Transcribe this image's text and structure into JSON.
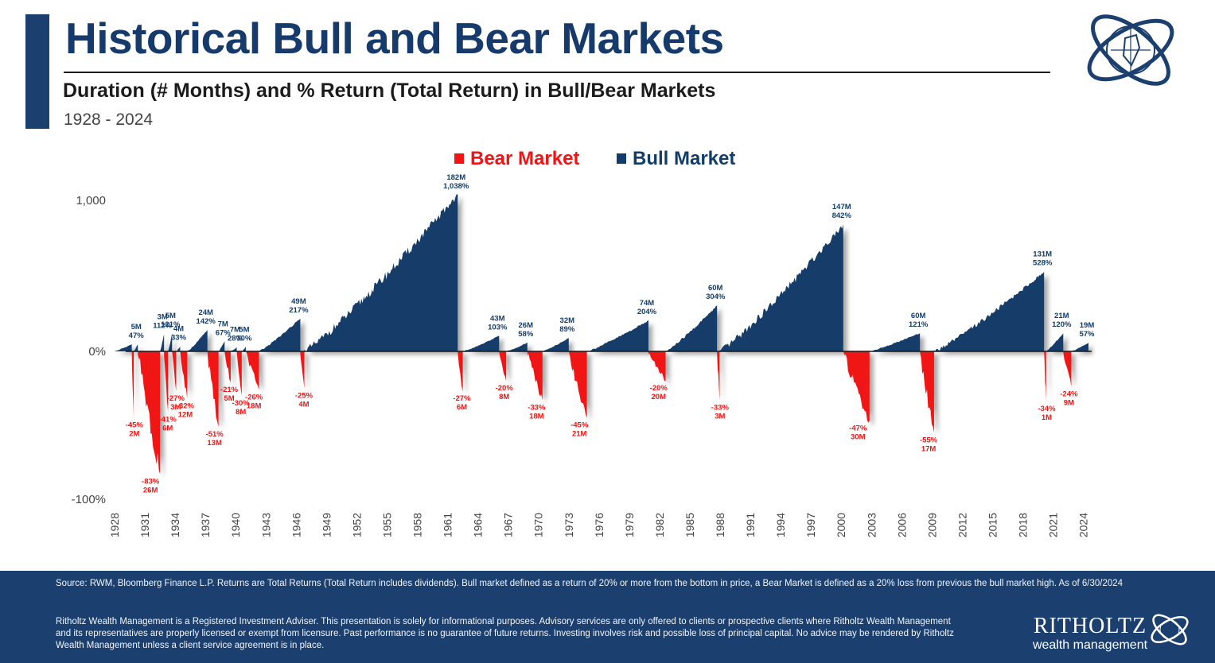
{
  "header": {
    "title": "Historical Bull and Bear Markets",
    "subtitle": "Duration (# Months) and % Return (Total Return) in Bull/Bear Markets",
    "date_range": "1928 - 2024"
  },
  "logo": {
    "icon": "globe-compass-logo"
  },
  "colors": {
    "bull": "#123d6a",
    "bear": "#f01414",
    "navy": "#1b3f6e"
  },
  "chart_data": {
    "type": "area",
    "legend": [
      {
        "name": "Bear Market",
        "color": "#f01414"
      },
      {
        "name": "Bull Market",
        "color": "#123d6a"
      }
    ],
    "legend_position": "top-center",
    "y_ticks": [
      1000,
      0,
      -100
    ],
    "y_tick_labels": [
      "1,000",
      "0%",
      "-100%"
    ],
    "x_ticks": [
      "1928",
      "1931",
      "1934",
      "1937",
      "1940",
      "1943",
      "1946",
      "1949",
      "1952",
      "1955",
      "1958",
      "1961",
      "1964",
      "1967",
      "1970",
      "1973",
      "1976",
      "1979",
      "1982",
      "1985",
      "1988",
      "1991",
      "1994",
      "1997",
      "2000",
      "2003",
      "2006",
      "2009",
      "2012",
      "2015",
      "2018",
      "2021",
      "2024"
    ],
    "scale": "y axis scaled: positive returns up to ~1,000%, negative down to -100%",
    "bull_markets": [
      {
        "start": 1928.0,
        "end": 1929.7,
        "months": "",
        "return_pct": 47,
        "label": ""
      },
      {
        "start": 1929.9,
        "end": 1930.3,
        "months": "5M",
        "return_pct": 47,
        "label_months": "5M",
        "label_return": "47%"
      },
      {
        "start": 1932.5,
        "end": 1932.9,
        "months": "3M",
        "return_pct": 112,
        "label_months": "3M",
        "label_return": "112%"
      },
      {
        "start": 1933.3,
        "end": 1933.7,
        "months": "5M",
        "return_pct": 121,
        "label_months": "5M",
        "label_return": "121%"
      },
      {
        "start": 1934.1,
        "end": 1934.5,
        "months": "4M",
        "return_pct": 33,
        "label_months": "4M",
        "label_return": "33%"
      },
      {
        "start": 1935.2,
        "end": 1937.2,
        "months": "24M",
        "return_pct": 142,
        "label_months": "24M",
        "label_return": "142%"
      },
      {
        "start": 1938.3,
        "end": 1938.9,
        "months": "7M",
        "return_pct": 67,
        "label_months": "7M",
        "label_return": "67%"
      },
      {
        "start": 1939.5,
        "end": 1940.1,
        "months": "7M",
        "return_pct": 28,
        "label_months": "7M",
        "label_return": "28%"
      },
      {
        "start": 1940.6,
        "end": 1941.0,
        "months": "5M",
        "return_pct": 30,
        "label_months": "5M",
        "label_return": "30%"
      },
      {
        "start": 1942.3,
        "end": 1946.4,
        "months": "49M",
        "return_pct": 217,
        "label_months": "49M",
        "label_return": "217%"
      },
      {
        "start": 1946.8,
        "end": 1962.0,
        "months": "182M",
        "return_pct": 1038,
        "label_months": "182M",
        "label_return": "1,038%"
      },
      {
        "start": 1962.5,
        "end": 1966.1,
        "months": "43M",
        "return_pct": 103,
        "label_months": "43M",
        "label_return": "103%"
      },
      {
        "start": 1966.8,
        "end": 1968.9,
        "months": "26M",
        "return_pct": 58,
        "label_months": "26M",
        "label_return": "58%"
      },
      {
        "start": 1970.4,
        "end": 1973.0,
        "months": "32M",
        "return_pct": 89,
        "label_months": "32M",
        "label_return": "89%"
      },
      {
        "start": 1974.8,
        "end": 1980.9,
        "months": "74M",
        "return_pct": 204,
        "label_months": "74M",
        "label_return": "204%"
      },
      {
        "start": 1982.6,
        "end": 1987.7,
        "months": "60M",
        "return_pct": 304,
        "label_months": "60M",
        "label_return": "304%"
      },
      {
        "start": 1987.95,
        "end": 2000.2,
        "months": "147M",
        "return_pct": 842,
        "label_months": "147M",
        "label_return": "842%"
      },
      {
        "start": 2002.8,
        "end": 2007.8,
        "months": "60M",
        "return_pct": 121,
        "label_months": "60M",
        "label_return": "121%"
      },
      {
        "start": 2009.2,
        "end": 2020.1,
        "months": "131M",
        "return_pct": 528,
        "label_months": "131M",
        "label_return": "528%"
      },
      {
        "start": 2020.25,
        "end": 2022.0,
        "months": "21M",
        "return_pct": 120,
        "label_months": "21M",
        "label_return": "120%"
      },
      {
        "start": 2022.8,
        "end": 2024.5,
        "months": "19M",
        "return_pct": 57,
        "label_months": "19M",
        "label_return": "57%"
      }
    ],
    "bear_markets": [
      {
        "start": 1929.7,
        "end": 1929.9,
        "return_pct": -45,
        "label_return": "-45%",
        "label_months": "2M"
      },
      {
        "start": 1930.3,
        "end": 1932.5,
        "return_pct": -83,
        "label_return": "-83%",
        "label_months": "26M"
      },
      {
        "start": 1932.9,
        "end": 1933.3,
        "return_pct": -41,
        "label_return": "-41%",
        "label_months": "6M"
      },
      {
        "start": 1933.7,
        "end": 1934.1,
        "return_pct": -27,
        "label_return": "-27%",
        "label_months": "3M"
      },
      {
        "start": 1934.5,
        "end": 1935.2,
        "return_pct": -32,
        "label_return": "-32%",
        "label_months": "12M"
      },
      {
        "start": 1937.2,
        "end": 1938.3,
        "return_pct": -51,
        "label_return": "-51%",
        "label_months": "13M"
      },
      {
        "start": 1938.9,
        "end": 1939.5,
        "return_pct": -21,
        "label_return": "-21%",
        "label_months": "5M"
      },
      {
        "start": 1940.1,
        "end": 1940.6,
        "return_pct": -30,
        "label_return": "-30%",
        "label_months": "8M"
      },
      {
        "start": 1941.0,
        "end": 1942.3,
        "return_pct": -26,
        "label_return": "-26%",
        "label_months": "18M"
      },
      {
        "start": 1946.4,
        "end": 1946.8,
        "return_pct": -25,
        "label_return": "-25%",
        "label_months": "4M"
      },
      {
        "start": 1962.0,
        "end": 1962.5,
        "return_pct": -27,
        "label_return": "-27%",
        "label_months": "6M"
      },
      {
        "start": 1966.1,
        "end": 1966.8,
        "return_pct": -20,
        "label_return": "-20%",
        "label_months": "8M"
      },
      {
        "start": 1968.9,
        "end": 1970.4,
        "return_pct": -33,
        "label_return": "-33%",
        "label_months": "18M"
      },
      {
        "start": 1973.0,
        "end": 1974.8,
        "return_pct": -45,
        "label_return": "-45%",
        "label_months": "21M"
      },
      {
        "start": 1980.9,
        "end": 1982.6,
        "return_pct": -20,
        "label_return": "-20%",
        "label_months": "20M"
      },
      {
        "start": 1987.7,
        "end": 1987.95,
        "return_pct": -33,
        "label_return": "-33%",
        "label_months": "3M"
      },
      {
        "start": 2000.2,
        "end": 2002.8,
        "return_pct": -47,
        "label_return": "-47%",
        "label_months": "30M"
      },
      {
        "start": 2007.8,
        "end": 2009.2,
        "return_pct": -55,
        "label_return": "-55%",
        "label_months": "17M"
      },
      {
        "start": 2020.1,
        "end": 2020.25,
        "return_pct": -34,
        "label_return": "-34%",
        "label_months": "1M"
      },
      {
        "start": 2022.0,
        "end": 2022.8,
        "return_pct": -24,
        "label_return": "-24%",
        "label_months": "9M"
      }
    ]
  },
  "footer": {
    "source_note": "Source: RWM, Bloomberg Finance L.P. Returns are Total Returns (Total Return includes dividends). Bull market defined as a return of 20% or more from the bottom in price, a Bear Market is defined as a 20% loss from previous the bull market high. As of 6/30/2024",
    "disclaimer": "Ritholtz Wealth Management is a Registered Investment Adviser. This presentation is solely for informational purposes. Advisory services are only offered to clients or prospective clients where Ritholtz Wealth Management and its representatives are properly licensed or exempt from licensure. Past performance is no guarantee of future returns. Investing involves risk and possible loss of principal capital. No advice may be rendered by Ritholtz Wealth Management unless a client service agreement is in place.",
    "brand_name": "RITHOLTZ",
    "brand_sub": "wealth management"
  }
}
